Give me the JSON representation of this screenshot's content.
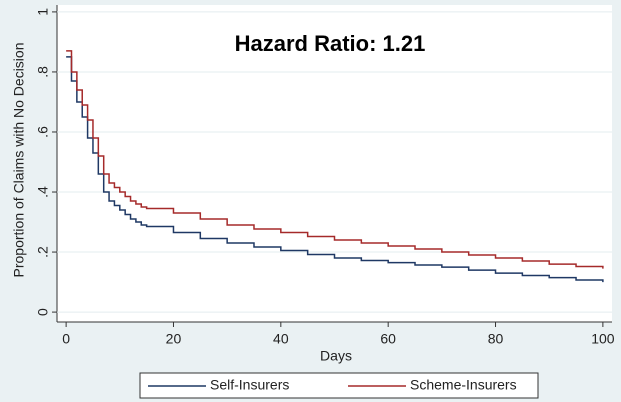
{
  "chart_data": {
    "type": "step",
    "annotation": "Hazard Ratio: 1.21",
    "x_label": "Days",
    "y_label": "Proportion of Claims with No Decision",
    "xlim": [
      -1.7,
      101.7
    ],
    "xticks": [
      0,
      20,
      40,
      60,
      80,
      100
    ],
    "ylim": [
      -0.033,
      1.023
    ],
    "yticks": [
      0,
      {
        "value": 0.2,
        "label": ".2"
      },
      {
        "value": 0.4,
        "label": ".4"
      },
      {
        "value": 0.6,
        "label": ".6"
      },
      {
        "value": 0.8,
        "label": ".8"
      },
      1
    ],
    "grid": true,
    "legend": "bottom",
    "x": [
      0,
      1,
      2,
      3,
      4,
      5,
      6,
      7,
      8,
      9,
      10,
      11,
      12,
      13,
      14,
      15,
      20,
      25,
      30,
      35,
      40,
      45,
      50,
      55,
      60,
      65,
      70,
      75,
      80,
      85,
      90,
      95,
      100
    ],
    "series": [
      {
        "name": "Self-Insurers",
        "color": "#1f3864",
        "values": [
          0.85,
          0.77,
          0.7,
          0.65,
          0.58,
          0.53,
          0.46,
          0.4,
          0.37,
          0.355,
          0.34,
          0.325,
          0.31,
          0.3,
          0.29,
          0.285,
          0.265,
          0.245,
          0.23,
          0.217,
          0.205,
          0.192,
          0.18,
          0.172,
          0.165,
          0.157,
          0.15,
          0.14,
          0.13,
          0.122,
          0.115,
          0.107,
          0.1
        ]
      },
      {
        "name": "Scheme-Insurers",
        "color": "#a52a2a",
        "values": [
          0.87,
          0.8,
          0.74,
          0.69,
          0.64,
          0.58,
          0.52,
          0.46,
          0.43,
          0.415,
          0.4,
          0.385,
          0.37,
          0.36,
          0.35,
          0.345,
          0.33,
          0.31,
          0.29,
          0.277,
          0.265,
          0.252,
          0.24,
          0.23,
          0.22,
          0.21,
          0.2,
          0.19,
          0.18,
          0.17,
          0.16,
          0.152,
          0.145
        ]
      }
    ]
  }
}
